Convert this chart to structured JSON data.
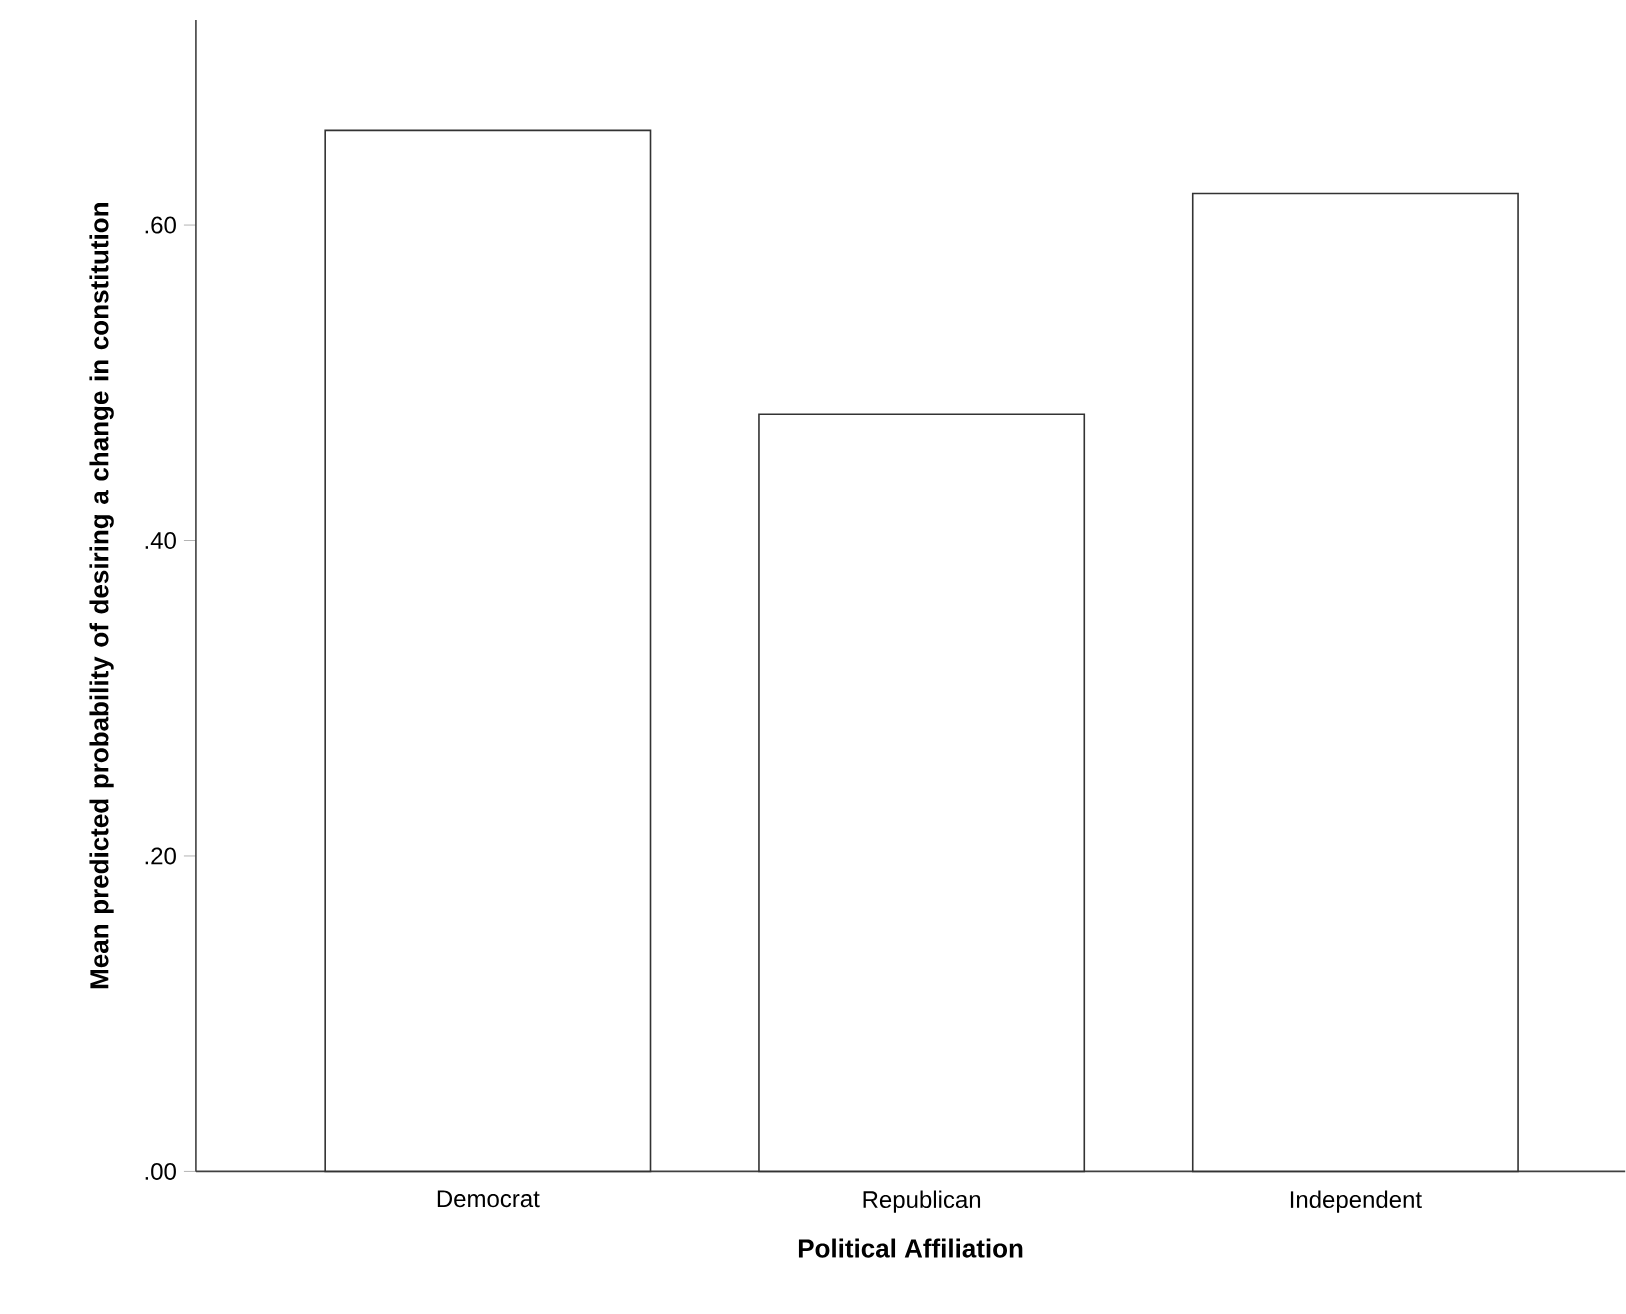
{
  "chart_data": {
    "type": "bar",
    "xlabel": "Political Affiliation",
    "ylabel": "Mean predicted probability of desiring a change in constitution",
    "categories": [
      "Democrat",
      "Republican",
      "Independent"
    ],
    "values": [
      0.66,
      0.48,
      0.62
    ],
    "color": "#ffffff",
    "ylim": [
      0,
      0.73
    ],
    "yticks": [
      {
        "value": 0,
        "label": ".00"
      },
      {
        "value": 0.2,
        "label": ".20"
      },
      {
        "value": 0.4,
        "label": ".40"
      },
      {
        "value": 0.6,
        "label": ".60"
      }
    ],
    "grid": false
  }
}
